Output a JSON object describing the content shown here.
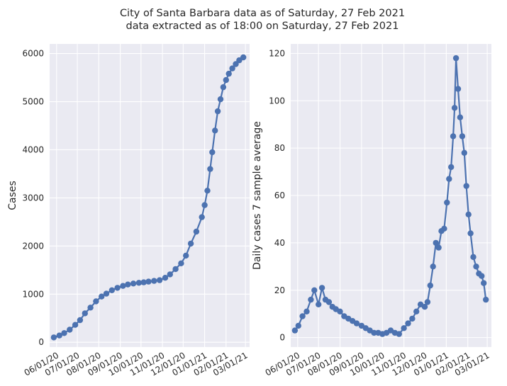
{
  "header": {
    "title_line1": "City of Santa Barbara data as of Saturday, 27 Feb 2021",
    "title_line2": "data extracted as of 18:00 on Saturday, 27 Feb 2021"
  },
  "colors": {
    "series": "#4c72b0",
    "panel": "#eaeaf2",
    "grid": "#ffffff"
  },
  "chart_data": [
    {
      "type": "line",
      "ylabel": "Cases",
      "xlabel": "",
      "ylim": [
        -100,
        6200
      ],
      "xlim": [
        "2020-05-22",
        "2021-03-07"
      ],
      "yticks": [
        0,
        1000,
        2000,
        3000,
        4000,
        5000,
        6000
      ],
      "xticks": [
        "2020-06-01",
        "2020-07-01",
        "2020-08-01",
        "2020-09-01",
        "2020-10-01",
        "2020-11-01",
        "2020-12-01",
        "2021-01-01",
        "2021-02-01",
        "2021-03-01"
      ],
      "xtick_labels": [
        "06/01/20",
        "07/01/20",
        "08/01/20",
        "09/01/20",
        "10/01/20",
        "11/01/20",
        "12/01/20",
        "01/01/21",
        "02/01/21",
        "03/01/21"
      ],
      "grid": true,
      "markers": true,
      "series": [
        {
          "x": [
            "2020-05-28",
            "2020-06-05",
            "2020-06-12",
            "2020-06-20",
            "2020-06-28",
            "2020-07-05",
            "2020-07-12",
            "2020-07-20",
            "2020-07-28",
            "2020-08-05",
            "2020-08-12",
            "2020-08-20",
            "2020-08-28",
            "2020-09-05",
            "2020-09-12",
            "2020-09-20",
            "2020-09-28",
            "2020-10-05",
            "2020-10-12",
            "2020-10-20",
            "2020-10-28",
            "2020-11-05",
            "2020-11-12",
            "2020-11-20",
            "2020-11-28",
            "2020-12-05",
            "2020-12-12",
            "2020-12-20",
            "2020-12-28",
            "2021-01-01",
            "2021-01-05",
            "2021-01-09",
            "2021-01-12",
            "2021-01-16",
            "2021-01-20",
            "2021-01-24",
            "2021-01-28",
            "2021-02-01",
            "2021-02-05",
            "2021-02-10",
            "2021-02-15",
            "2021-02-20",
            "2021-02-26"
          ],
          "y": [
            100,
            140,
            190,
            260,
            360,
            460,
            600,
            720,
            850,
            950,
            1010,
            1080,
            1130,
            1170,
            1200,
            1220,
            1235,
            1245,
            1260,
            1275,
            1290,
            1340,
            1410,
            1520,
            1640,
            1800,
            2050,
            2300,
            2600,
            2850,
            3150,
            3600,
            3950,
            4400,
            4800,
            5050,
            5300,
            5450,
            5580,
            5690,
            5780,
            5860,
            5920
          ]
        }
      ]
    },
    {
      "type": "line",
      "ylabel": "Daily cases 7 sample average",
      "xlabel": "",
      "ylim": [
        -4,
        124
      ],
      "xlim": [
        "2020-05-22",
        "2021-03-07"
      ],
      "yticks": [
        0,
        20,
        40,
        60,
        80,
        100,
        120
      ],
      "xticks": [
        "2020-06-01",
        "2020-07-01",
        "2020-08-01",
        "2020-09-01",
        "2020-10-01",
        "2020-11-01",
        "2020-12-01",
        "2021-01-01",
        "2021-02-01",
        "2021-03-01"
      ],
      "xtick_labels": [
        "06/01/20",
        "07/01/20",
        "08/01/20",
        "09/01/20",
        "10/01/20",
        "11/01/20",
        "12/01/20",
        "01/01/21",
        "02/01/21",
        "03/01/21"
      ],
      "grid": true,
      "markers": true,
      "series": [
        {
          "x": [
            "2020-05-28",
            "2020-06-02",
            "2020-06-08",
            "2020-06-14",
            "2020-06-20",
            "2020-06-25",
            "2020-07-01",
            "2020-07-06",
            "2020-07-11",
            "2020-07-16",
            "2020-07-21",
            "2020-07-26",
            "2020-08-01",
            "2020-08-07",
            "2020-08-13",
            "2020-08-19",
            "2020-08-25",
            "2020-09-01",
            "2020-09-07",
            "2020-09-13",
            "2020-09-19",
            "2020-09-25",
            "2020-10-01",
            "2020-10-07",
            "2020-10-13",
            "2020-10-19",
            "2020-10-25",
            "2020-11-01",
            "2020-11-07",
            "2020-11-13",
            "2020-11-19",
            "2020-11-25",
            "2020-12-01",
            "2020-12-05",
            "2020-12-09",
            "2020-12-13",
            "2020-12-17",
            "2020-12-21",
            "2020-12-25",
            "2020-12-29",
            "2021-01-02",
            "2021-01-05",
            "2021-01-08",
            "2021-01-11",
            "2021-01-13",
            "2021-01-15",
            "2021-01-18",
            "2021-01-21",
            "2021-01-24",
            "2021-01-27",
            "2021-01-30",
            "2021-02-02",
            "2021-02-05",
            "2021-02-09",
            "2021-02-13",
            "2021-02-17",
            "2021-02-21",
            "2021-02-24",
            "2021-02-27"
          ],
          "y": [
            3,
            5,
            9,
            11,
            16,
            20,
            14,
            21,
            16,
            15,
            13,
            12,
            11,
            9,
            8,
            7,
            6,
            5,
            4,
            3,
            2,
            2,
            1.5,
            2,
            3,
            2,
            1.5,
            4,
            6,
            8,
            11,
            14,
            13,
            15,
            22,
            30,
            40,
            38,
            45,
            46,
            57,
            67,
            72,
            85,
            97,
            118,
            105,
            93,
            85,
            78,
            64,
            52,
            44,
            34,
            30,
            27,
            26,
            23,
            16
          ]
        }
      ]
    }
  ]
}
